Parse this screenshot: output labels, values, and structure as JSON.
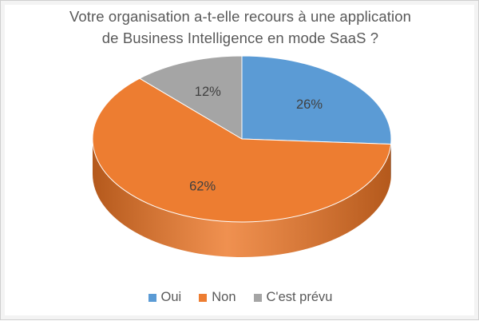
{
  "chart_data": {
    "type": "pie",
    "title": "Votre organisation a-t-elle recours à une application\nde Business Intelligence en mode SaaS ?",
    "title_lines": [
      "Votre organisation a-t-elle recours à une application",
      "de Business Intelligence en mode SaaS ?"
    ],
    "style": "3d",
    "legend_position": "bottom",
    "slices": [
      {
        "label": "Oui",
        "value": 26,
        "value_label": "26%",
        "color": "#5b9bd5",
        "side_color": "#2e6095"
      },
      {
        "label": "Non",
        "value": 62,
        "value_label": "62%",
        "color": "#ed7d31",
        "side_color": "#b4591c"
      },
      {
        "label": "C'est prévu",
        "value": 12,
        "value_label": "12%",
        "color": "#a5a5a5",
        "side_color": "#6f6f6f"
      }
    ]
  }
}
